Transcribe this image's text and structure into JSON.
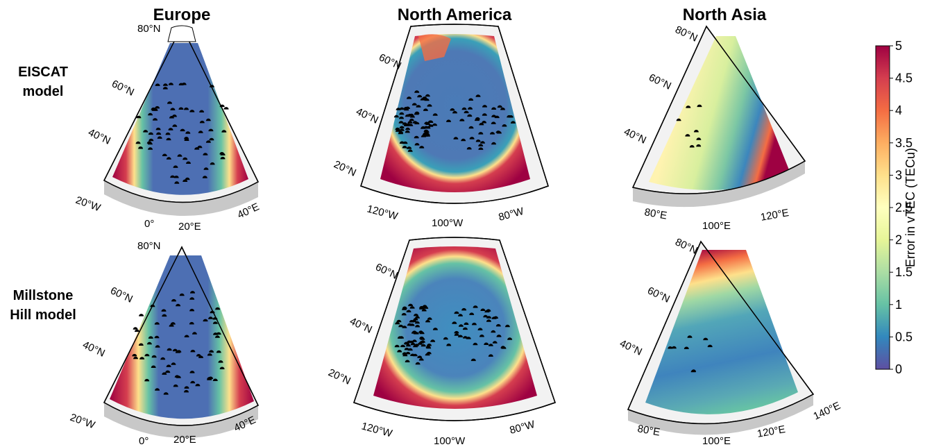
{
  "chart_data": {
    "type": "heatmap",
    "columns": [
      "Europe",
      "North America",
      "North Asia"
    ],
    "rows": [
      "EISCAT model",
      "Millstone Hill model"
    ],
    "row_labels": [
      [
        "EISCAT",
        "model"
      ],
      [
        "Millstone",
        "Hill model"
      ]
    ],
    "colorbar": {
      "label": "Error in vTEC (TECu)",
      "range": [
        0,
        5
      ],
      "ticks": [
        "0",
        "0.5",
        "1",
        "1.5",
        "2",
        "2.5",
        "3",
        "3.5",
        "4",
        "4.5",
        "5"
      ],
      "colors": [
        "#5e4fa2",
        "#3288bd",
        "#66c2a5",
        "#abdda4",
        "#e6f598",
        "#ffffbf",
        "#fee08b",
        "#fdae61",
        "#f46d43",
        "#d53e4f",
        "#9e0142"
      ]
    },
    "regions": {
      "Europe": {
        "lat_labels": [
          "80°N",
          "60°N",
          "40°N"
        ],
        "lon_labels": [
          "20°W",
          "0°",
          "20°E",
          "40°E"
        ],
        "mean_error": {
          "EISCAT model": 0.4,
          "Millstone Hill model": 0.5
        },
        "edge_error": {
          "EISCAT model": 5,
          "Millstone Hill model": 5
        }
      },
      "North America": {
        "lat_labels": [
          "60°N",
          "40°N",
          "20°N"
        ],
        "lon_labels": [
          "120°W",
          "100°W",
          "80°W"
        ],
        "mean_error": {
          "EISCAT model": 0.6,
          "Millstone Hill model": 0.8
        },
        "edge_error": {
          "EISCAT model": 5,
          "Millstone Hill model": 5
        }
      },
      "North Asia": {
        "lat_labels": [
          "80°N",
          "60°N",
          "40°N"
        ],
        "lon_labels": [
          "80°E",
          "100°E",
          "120°E",
          "140°E"
        ],
        "mean_error": {
          "EISCAT model": 2.4,
          "Millstone Hill model": 0.8
        },
        "edge_error": {
          "EISCAT model": 1.0,
          "Millstone Hill model": 5
        }
      }
    }
  }
}
